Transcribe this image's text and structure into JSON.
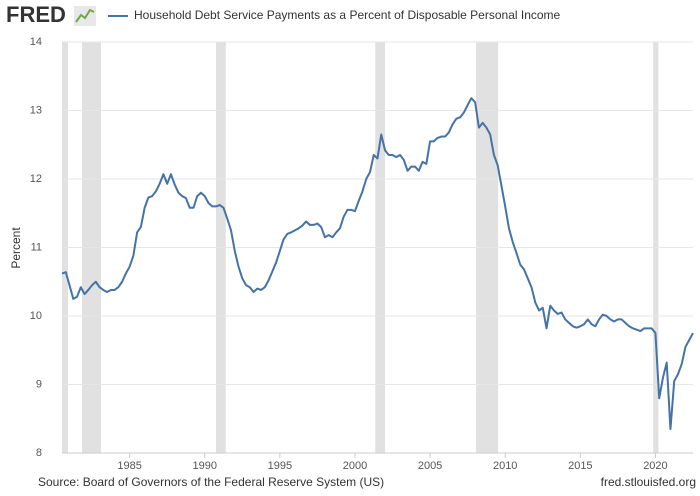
{
  "chart_data": {
    "type": "line",
    "logo": "FRED",
    "ylabel": "Percent",
    "source": "Source: Board of Governors of the Federal Reserve System (US)",
    "site": "fred.stlouisfed.org",
    "xlim": [
      1980.5,
      2022.5
    ],
    "xticks": [
      1985,
      1990,
      1995,
      2000,
      2005,
      2010,
      2015,
      2020
    ],
    "ylim": [
      8,
      14
    ],
    "yticks": [
      8,
      9,
      10,
      11,
      12,
      13,
      14
    ],
    "grid": true,
    "recessions": [
      [
        1980.5,
        1980.9
      ],
      [
        1981.83,
        1983.1
      ],
      [
        1990.75,
        1991.4
      ],
      [
        2001.35,
        2002.0
      ],
      [
        2008.06,
        2009.53
      ],
      [
        2019.85,
        2020.2
      ]
    ],
    "x": [
      1980.5,
      1980.75,
      1981,
      1981.25,
      1981.5,
      1981.75,
      1982,
      1982.25,
      1982.5,
      1982.75,
      1983,
      1983.25,
      1983.5,
      1983.75,
      1984,
      1984.25,
      1984.5,
      1984.75,
      1985,
      1985.25,
      1985.5,
      1985.75,
      1986,
      1986.25,
      1986.5,
      1986.75,
      1987,
      1987.25,
      1987.5,
      1987.75,
      1988,
      1988.25,
      1988.5,
      1988.75,
      1989,
      1989.25,
      1989.5,
      1989.75,
      1990,
      1990.25,
      1990.5,
      1990.75,
      1991,
      1991.25,
      1991.5,
      1991.75,
      1992,
      1992.25,
      1992.5,
      1992.75,
      1993,
      1993.25,
      1993.5,
      1993.75,
      1994,
      1994.25,
      1994.5,
      1994.75,
      1995,
      1995.25,
      1995.5,
      1995.75,
      1996,
      1996.25,
      1996.5,
      1996.75,
      1997,
      1997.25,
      1997.5,
      1997.75,
      1998,
      1998.25,
      1998.5,
      1998.75,
      1999,
      1999.25,
      1999.5,
      1999.75,
      2000,
      2000.25,
      2000.5,
      2000.75,
      2001,
      2001.25,
      2001.5,
      2001.75,
      2002,
      2002.25,
      2002.5,
      2002.75,
      2003,
      2003.25,
      2003.5,
      2003.75,
      2004,
      2004.25,
      2004.5,
      2004.75,
      2005,
      2005.25,
      2005.5,
      2005.75,
      2006,
      2006.25,
      2006.5,
      2006.75,
      2007,
      2007.25,
      2007.5,
      2007.75,
      2008,
      2008.25,
      2008.5,
      2008.75,
      2009,
      2009.25,
      2009.5,
      2009.75,
      2010,
      2010.25,
      2010.5,
      2010.75,
      2011,
      2011.25,
      2011.5,
      2011.75,
      2012,
      2012.25,
      2012.5,
      2012.75,
      2013,
      2013.25,
      2013.5,
      2013.75,
      2014,
      2014.25,
      2014.5,
      2014.75,
      2015,
      2015.25,
      2015.5,
      2015.75,
      2016,
      2016.25,
      2016.5,
      2016.75,
      2017,
      2017.25,
      2017.5,
      2017.75,
      2018,
      2018.25,
      2018.5,
      2018.75,
      2019,
      2019.25,
      2019.5,
      2019.75,
      2020,
      2020.25,
      2020.5,
      2020.75,
      2021,
      2021.25,
      2021.5,
      2021.75,
      2022,
      2022.25,
      2022.5
    ],
    "series": [
      {
        "name": "Household Debt Service Payments as a Percent of Disposable Personal Income",
        "color": "#4572a7",
        "values": [
          10.62,
          10.64,
          10.45,
          10.25,
          10.28,
          10.42,
          10.32,
          10.38,
          10.45,
          10.5,
          10.42,
          10.38,
          10.35,
          10.38,
          10.38,
          10.42,
          10.5,
          10.62,
          10.72,
          10.88,
          11.22,
          11.3,
          11.58,
          11.73,
          11.75,
          11.82,
          11.93,
          12.07,
          11.93,
          12.07,
          11.92,
          11.8,
          11.75,
          11.72,
          11.58,
          11.58,
          11.75,
          11.8,
          11.75,
          11.65,
          11.6,
          11.6,
          11.62,
          11.58,
          11.42,
          11.25,
          10.95,
          10.72,
          10.55,
          10.45,
          10.42,
          10.35,
          10.4,
          10.38,
          10.42,
          10.52,
          10.65,
          10.78,
          10.95,
          11.12,
          11.2,
          11.22,
          11.25,
          11.28,
          11.32,
          11.38,
          11.33,
          11.33,
          11.35,
          11.3,
          11.15,
          11.18,
          11.15,
          11.22,
          11.28,
          11.45,
          11.55,
          11.55,
          11.53,
          11.68,
          11.82,
          12.0,
          12.1,
          12.35,
          12.3,
          12.65,
          12.42,
          12.35,
          12.35,
          12.32,
          12.35,
          12.28,
          12.12,
          12.18,
          12.18,
          12.12,
          12.25,
          12.22,
          12.55,
          12.55,
          12.6,
          12.62,
          12.62,
          12.68,
          12.8,
          12.88,
          12.9,
          12.97,
          13.08,
          13.18,
          13.12,
          12.75,
          12.82,
          12.75,
          12.65,
          12.35,
          12.2,
          11.9,
          11.6,
          11.28,
          11.08,
          10.92,
          10.75,
          10.68,
          10.55,
          10.42,
          10.2,
          10.08,
          10.12,
          9.82,
          10.15,
          10.08,
          10.03,
          10.05,
          9.95,
          9.9,
          9.85,
          9.83,
          9.85,
          9.88,
          9.95,
          9.88,
          9.85,
          9.95,
          10.02,
          10.0,
          9.95,
          9.92,
          9.95,
          9.95,
          9.9,
          9.85,
          9.82,
          9.8,
          9.78,
          9.82,
          9.82,
          9.82,
          9.75,
          8.8,
          9.1,
          9.32,
          8.35,
          9.05,
          9.15,
          9.3,
          9.55,
          9.65,
          9.75
        ]
      }
    ]
  }
}
